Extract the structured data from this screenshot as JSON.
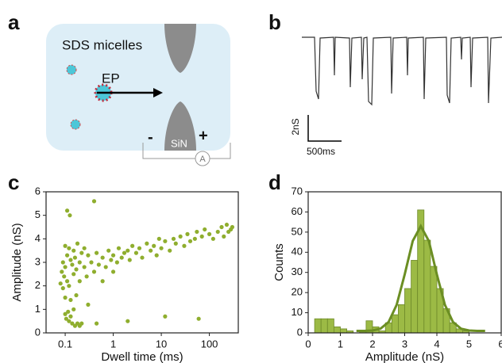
{
  "panels": {
    "a": {
      "label": "a",
      "title": "SDS micelles",
      "arrow": "EP",
      "minus": "-",
      "plus": "+",
      "membrane": "SiN",
      "ammeter": "A"
    },
    "b": {
      "label": "b",
      "scale_y": "2nS",
      "scale_x": "500ms"
    },
    "c": {
      "label": "c"
    },
    "d": {
      "label": "d"
    }
  },
  "chart_data": [
    {
      "type": "scatter",
      "xlabel": "Dwell time (ms)",
      "ylabel": "Amplitude (nS)",
      "xscale": "log",
      "color": "#8fae2e",
      "xlim": [
        0.04,
        400
      ],
      "ylim": [
        0,
        6
      ],
      "xticks": [
        0.1,
        1,
        10,
        100
      ],
      "yticks": [
        0,
        1,
        2,
        3,
        4,
        5,
        6
      ],
      "x": [
        0.08,
        0.085,
        0.09,
        0.09,
        0.095,
        0.1,
        0.1,
        0.1,
        0.1,
        0.105,
        0.11,
        0.11,
        0.11,
        0.115,
        0.12,
        0.12,
        0.12,
        0.125,
        0.13,
        0.13,
        0.13,
        0.14,
        0.14,
        0.15,
        0.15,
        0.15,
        0.16,
        0.16,
        0.17,
        0.17,
        0.18,
        0.18,
        0.2,
        0.2,
        0.2,
        0.22,
        0.22,
        0.25,
        0.25,
        0.28,
        0.3,
        0.3,
        0.35,
        0.4,
        0.4,
        0.45,
        0.45,
        0.5,
        0.6,
        0.6,
        0.7,
        0.8,
        0.9,
        1.0,
        1.0,
        1.2,
        1.3,
        1.5,
        1.7,
        2.0,
        2.0,
        2.2,
        2.5,
        3,
        3.5,
        4,
        5,
        6,
        7,
        8,
        9,
        10,
        12,
        12,
        15,
        18,
        20,
        25,
        30,
        35,
        40,
        50,
        55,
        60,
        70,
        80,
        100,
        120,
        150,
        180,
        200,
        230,
        250,
        280,
        300
      ],
      "values": [
        2.1,
        2.6,
        1.9,
        3.0,
        2.4,
        3.7,
        2.8,
        1.5,
        0.8,
        0.6,
        5.2,
        3.3,
        2.2,
        0.9,
        3.6,
        2.0,
        0.5,
        5.0,
        3.1,
        1.4,
        0.7,
        2.9,
        0.4,
        3.5,
        2.5,
        1.0,
        3.2,
        0.3,
        2.7,
        1.6,
        3.8,
        0.4,
        3.0,
        2.2,
        0.3,
        3.4,
        0.4,
        2.8,
        3.6,
        2.4,
        3.3,
        1.2,
        3.0,
        2.6,
        5.6,
        3.4,
        0.4,
        2.9,
        3.2,
        2.2,
        2.8,
        3.5,
        3.1,
        3.3,
        2.6,
        3.0,
        3.6,
        3.2,
        3.4,
        3.5,
        0.5,
        3.1,
        3.7,
        3.4,
        3.6,
        3.2,
        3.8,
        3.5,
        3.7,
        3.3,
        4.0,
        3.6,
        3.9,
        0.7,
        3.5,
        4.0,
        3.8,
        4.1,
        3.7,
        4.2,
        3.9,
        4.0,
        4.3,
        0.6,
        4.1,
        4.4,
        4.2,
        4.0,
        4.3,
        4.5,
        4.1,
        4.6,
        4.3,
        4.4,
        4.5
      ]
    },
    {
      "type": "histogram",
      "xlabel": "Amplitude (nS)",
      "ylabel": "Counts",
      "color": "#9cba45",
      "edgecolor": "#6e8a2a",
      "xlim": [
        0,
        6
      ],
      "ylim": [
        0,
        70
      ],
      "xticks": [
        0,
        1,
        2,
        3,
        4,
        5,
        6
      ],
      "yticks": [
        0,
        10,
        20,
        30,
        40,
        50,
        60,
        70
      ],
      "bins": [
        0.2,
        0.4,
        0.6,
        0.8,
        1.0,
        1.2,
        1.4,
        1.6,
        1.8,
        2.0,
        2.2,
        2.4,
        2.6,
        2.8,
        3.0,
        3.2,
        3.4,
        3.6,
        3.8,
        4.0,
        4.2,
        4.4,
        4.6,
        4.8,
        5.0
      ],
      "values": [
        7,
        7,
        7,
        3,
        2,
        1,
        0,
        1,
        6,
        3,
        1,
        5,
        9,
        14,
        22,
        36,
        61,
        46,
        33,
        22,
        12,
        5,
        2,
        1
      ],
      "fit": {
        "color": "#6b8e23",
        "x": [
          1.5,
          1.75,
          2.0,
          2.25,
          2.5,
          2.75,
          3.0,
          3.25,
          3.5,
          3.75,
          4.0,
          4.25,
          4.5,
          4.75,
          5.0,
          5.25,
          5.5
        ],
        "values": [
          1,
          1,
          1.2,
          2.1,
          5.4,
          13.9,
          29,
          45.6,
          53,
          45.6,
          29,
          13.9,
          5.4,
          2.1,
          1.2,
          1,
          1
        ]
      }
    }
  ]
}
